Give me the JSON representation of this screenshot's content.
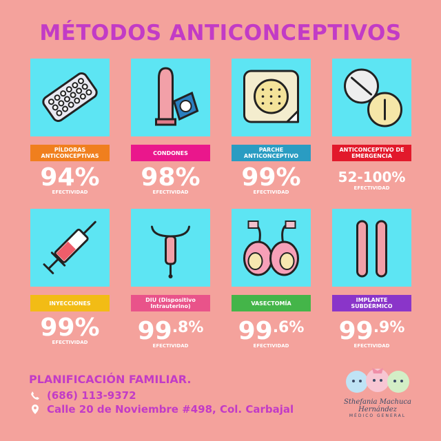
{
  "header": {
    "title": "MÉTODOS ANTICONCEPTIVOS"
  },
  "methods": [
    {
      "label": "PÍLDORAS ANTICONCEPTIVAS",
      "color": "#f07f1e",
      "value": "94%",
      "sup": null,
      "caption": "EFECTIVIDAD"
    },
    {
      "label": "CONDONES",
      "color": "#ea178c",
      "value": "98%",
      "sup": null,
      "caption": "EFECTIVIDAD"
    },
    {
      "label": "PARCHE ANTICONCEPTIVO",
      "color": "#2a9cc2",
      "value": "99%",
      "sup": null,
      "caption": "EFECTIVIDAD"
    },
    {
      "label": "ANTICONCEPTIVO DE EMERGENCIA",
      "color": "#e2192b",
      "value": "52-100%",
      "sup": null,
      "caption": "EFECTIVIDAD"
    },
    {
      "label": "INYECCIONES",
      "color": "#f2bc15",
      "value": "99%",
      "sup": null,
      "caption": "EFECTIVIDAD"
    },
    {
      "label": "DIU (Dispositivo Intrauterino)",
      "color": "#e9538a",
      "value": "99",
      "sup": ".8%",
      "caption": "EFECTIVIDAD"
    },
    {
      "label": "VASECTOMÍA",
      "color": "#44b549",
      "value": "99",
      "sup": ".6%",
      "caption": "EFECTIVIDAD"
    },
    {
      "label": "IMPLANTE SUBDÉRMICO",
      "color": "#8a35c9",
      "value": "99",
      "sup": ".9%",
      "caption": "EFECTIVIDAD"
    }
  ],
  "footer": {
    "heading": "PLANIFICACIÓN FAMILIAR.",
    "phone": "(686) 113-9372",
    "address": "Calle 20 de Noviembre #498, Col. Carbajal",
    "logo_name": "Sthefania Machuca Hernández",
    "logo_role": "MÉDICO GENERAL"
  }
}
